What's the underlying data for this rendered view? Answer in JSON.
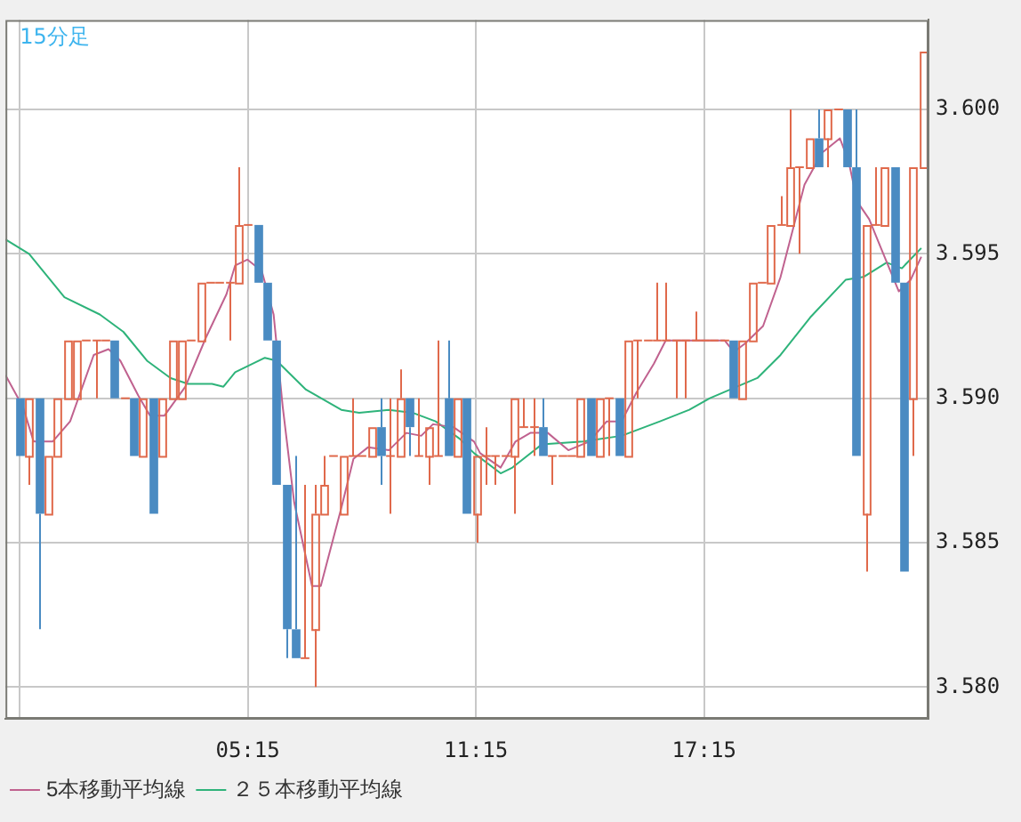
{
  "chart_data": {
    "type": "candlestick",
    "title": "15分足",
    "x": [
      -0.75,
      -0.5,
      -0.25,
      0,
      0.25,
      0.5,
      0.75,
      1,
      1.25,
      1.5,
      1.75,
      2,
      2.25,
      2.5,
      2.75,
      3,
      3.25,
      3.5,
      3.75,
      4,
      4.25,
      4.5,
      4.75,
      5,
      5.25,
      5.5,
      5.75,
      6,
      6.25,
      6.5,
      6.75,
      7,
      7.25,
      7.5,
      7.75,
      8,
      8.25,
      8.5,
      8.75,
      9,
      9.25,
      9.5,
      9.75,
      10,
      10.25,
      10.5,
      10.75,
      11,
      11.25,
      11.5,
      11.75,
      12,
      12.25,
      12.5,
      12.75,
      13,
      13.25,
      13.5,
      13.75,
      14,
      14.25,
      14.5,
      14.75,
      15,
      15.25,
      15.5,
      15.75,
      16,
      16.25,
      16.5,
      16.75,
      17,
      17.25,
      17.5,
      17.75,
      18,
      18.25,
      18.5,
      18.75,
      19,
      19.25,
      19.5,
      19.75,
      20,
      20.25,
      20.5,
      20.75,
      21,
      21.25,
      21.5,
      21.75,
      22,
      22.25,
      22.5,
      22.75,
      23
    ],
    "ohlc": [
      [
        3.59,
        3.59,
        3.588,
        3.588
      ],
      [
        3.588,
        3.59,
        3.587,
        3.59
      ],
      [
        3.59,
        3.59,
        3.582,
        3.586
      ],
      [
        3.586,
        3.588,
        3.586,
        3.588
      ],
      [
        3.588,
        3.59,
        3.588,
        3.59
      ],
      [
        3.59,
        3.592,
        3.59,
        3.592
      ],
      [
        3.59,
        3.592,
        3.59,
        3.592
      ],
      [
        3.592,
        3.592,
        3.592,
        3.592
      ],
      [
        3.592,
        3.592,
        3.59,
        3.592
      ],
      [
        3.592,
        3.592,
        3.592,
        3.592
      ],
      [
        3.592,
        3.592,
        3.59,
        3.59
      ],
      [
        3.59,
        3.59,
        3.59,
        3.59
      ],
      [
        3.59,
        3.59,
        3.588,
        3.588
      ],
      [
        3.588,
        3.59,
        3.588,
        3.59
      ],
      [
        3.59,
        3.59,
        3.586,
        3.586
      ],
      [
        3.588,
        3.59,
        3.588,
        3.59
      ],
      [
        3.59,
        3.592,
        3.59,
        3.592
      ],
      [
        3.59,
        3.592,
        3.59,
        3.592
      ],
      [
        3.592,
        3.592,
        3.592,
        3.592
      ],
      [
        3.592,
        3.594,
        3.592,
        3.594
      ],
      [
        3.594,
        3.594,
        3.594,
        3.594
      ],
      [
        3.594,
        3.594,
        3.594,
        3.594
      ],
      [
        3.594,
        3.594,
        3.592,
        3.594
      ],
      [
        3.594,
        3.598,
        3.594,
        3.596
      ],
      [
        3.596,
        3.596,
        3.596,
        3.596
      ],
      [
        3.596,
        3.596,
        3.594,
        3.594
      ],
      [
        3.594,
        3.594,
        3.592,
        3.592
      ],
      [
        3.592,
        3.592,
        3.587,
        3.587
      ],
      [
        3.587,
        3.587,
        3.581,
        3.582
      ],
      [
        3.582,
        3.588,
        3.581,
        3.581
      ],
      [
        3.581,
        3.587,
        3.581,
        3.581
      ],
      [
        3.582,
        3.587,
        3.58,
        3.586
      ],
      [
        3.586,
        3.588,
        3.586,
        3.587
      ],
      [
        3.588,
        3.588,
        3.588,
        3.588
      ],
      [
        3.586,
        3.588,
        3.586,
        3.588
      ],
      [
        3.588,
        3.59,
        3.588,
        3.588
      ],
      [
        3.588,
        3.588,
        3.588,
        3.588
      ],
      [
        3.588,
        3.589,
        3.588,
        3.589
      ],
      [
        3.589,
        3.59,
        3.587,
        3.588
      ],
      [
        3.588,
        3.59,
        3.586,
        3.588
      ],
      [
        3.588,
        3.591,
        3.588,
        3.59
      ],
      [
        3.59,
        3.59,
        3.588,
        3.589
      ],
      [
        3.588,
        3.59,
        3.588,
        3.588
      ],
      [
        3.588,
        3.589,
        3.587,
        3.589
      ],
      [
        3.588,
        3.592,
        3.588,
        3.588
      ],
      [
        3.59,
        3.592,
        3.588,
        3.588
      ],
      [
        3.588,
        3.59,
        3.588,
        3.59
      ],
      [
        3.59,
        3.59,
        3.586,
        3.586
      ],
      [
        3.586,
        3.588,
        3.585,
        3.588
      ],
      [
        3.588,
        3.589,
        3.587,
        3.588
      ],
      [
        3.588,
        3.588,
        3.587,
        3.588
      ],
      [
        3.588,
        3.588,
        3.588,
        3.588
      ],
      [
        3.588,
        3.59,
        3.586,
        3.59
      ],
      [
        3.589,
        3.59,
        3.589,
        3.589
      ],
      [
        3.589,
        3.59,
        3.588,
        3.589
      ],
      [
        3.589,
        3.59,
        3.588,
        3.588
      ],
      [
        3.588,
        3.588,
        3.587,
        3.588
      ],
      [
        3.588,
        3.588,
        3.588,
        3.588
      ],
      [
        3.588,
        3.588,
        3.588,
        3.588
      ],
      [
        3.588,
        3.59,
        3.588,
        3.59
      ],
      [
        3.59,
        3.59,
        3.588,
        3.588
      ],
      [
        3.588,
        3.59,
        3.588,
        3.59
      ],
      [
        3.59,
        3.59,
        3.588,
        3.59
      ],
      [
        3.59,
        3.59,
        3.588,
        3.588
      ],
      [
        3.588,
        3.592,
        3.588,
        3.592
      ],
      [
        3.592,
        3.592,
        3.59,
        3.592
      ],
      [
        3.592,
        3.592,
        3.592,
        3.592
      ],
      [
        3.592,
        3.594,
        3.592,
        3.592
      ],
      [
        3.592,
        3.594,
        3.592,
        3.592
      ],
      [
        3.592,
        3.592,
        3.59,
        3.592
      ],
      [
        3.592,
        3.592,
        3.59,
        3.592
      ],
      [
        3.592,
        3.593,
        3.592,
        3.592
      ],
      [
        3.592,
        3.592,
        3.592,
        3.592
      ],
      [
        3.592,
        3.592,
        3.592,
        3.592
      ],
      [
        3.592,
        3.592,
        3.592,
        3.592
      ],
      [
        3.592,
        3.592,
        3.59,
        3.59
      ],
      [
        3.59,
        3.592,
        3.59,
        3.592
      ],
      [
        3.592,
        3.594,
        3.592,
        3.594
      ],
      [
        3.594,
        3.594,
        3.594,
        3.594
      ],
      [
        3.594,
        3.596,
        3.594,
        3.596
      ],
      [
        3.596,
        3.597,
        3.596,
        3.596
      ],
      [
        3.596,
        3.6,
        3.596,
        3.598
      ],
      [
        3.598,
        3.598,
        3.595,
        3.598
      ],
      [
        3.598,
        3.599,
        3.598,
        3.599
      ],
      [
        3.599,
        3.6,
        3.598,
        3.598
      ],
      [
        3.599,
        3.6,
        3.598,
        3.6
      ],
      [
        3.6,
        3.6,
        3.6,
        3.6
      ],
      [
        3.6,
        3.6,
        3.598,
        3.598
      ],
      [
        3.598,
        3.6,
        3.588,
        3.588
      ],
      [
        3.586,
        3.596,
        3.584,
        3.596
      ],
      [
        3.596,
        3.598,
        3.596,
        3.596
      ],
      [
        3.596,
        3.598,
        3.596,
        3.598
      ],
      [
        3.598,
        3.598,
        3.594,
        3.594
      ],
      [
        3.594,
        3.594,
        3.584,
        3.584
      ],
      [
        3.59,
        3.598,
        3.588,
        3.598
      ],
      [
        3.598,
        3.602,
        3.598,
        3.602
      ]
    ],
    "colors": [
      "#4a8bc2",
      "#e0694b",
      "#4a8bc2",
      "#e0694b",
      "#e0694b",
      "#e0694b",
      "#e0694b",
      "#e0694b",
      "#e0694b",
      "#e0694b",
      "#4a8bc2",
      "#e0694b",
      "#4a8bc2",
      "#e0694b",
      "#4a8bc2",
      "#e0694b",
      "#e0694b",
      "#e0694b",
      "#e0694b",
      "#e0694b",
      "#e0694b",
      "#e0694b",
      "#e0694b",
      "#e0694b",
      "#e0694b",
      "#4a8bc2",
      "#4a8bc2",
      "#4a8bc2",
      "#4a8bc2",
      "#4a8bc2",
      "#e0694b",
      "#e0694b",
      "#e0694b",
      "#e0694b",
      "#e0694b",
      "#e0694b",
      "#e0694b",
      "#e0694b",
      "#4a8bc2",
      "#e0694b",
      "#e0694b",
      "#4a8bc2",
      "#e0694b",
      "#e0694b",
      "#e0694b",
      "#4a8bc2",
      "#e0694b",
      "#4a8bc2",
      "#e0694b",
      "#e0694b",
      "#e0694b",
      "#e0694b",
      "#e0694b",
      "#e0694b",
      "#e0694b",
      "#4a8bc2",
      "#e0694b",
      "#e0694b",
      "#e0694b",
      "#e0694b",
      "#4a8bc2",
      "#e0694b",
      "#e0694b",
      "#4a8bc2",
      "#e0694b",
      "#e0694b",
      "#e0694b",
      "#e0694b",
      "#e0694b",
      "#e0694b",
      "#e0694b",
      "#e0694b",
      "#e0694b",
      "#e0694b",
      "#e0694b",
      "#4a8bc2",
      "#e0694b",
      "#e0694b",
      "#e0694b",
      "#e0694b",
      "#e0694b",
      "#e0694b",
      "#e0694b",
      "#e0694b",
      "#4a8bc2",
      "#e0694b",
      "#e0694b",
      "#4a8bc2",
      "#4a8bc2",
      "#e0694b",
      "#e0694b",
      "#e0694b",
      "#4a8bc2",
      "#4a8bc2",
      "#e0694b",
      "#e0694b"
    ],
    "series": [
      {
        "name": "5本移動平均線",
        "type": "line",
        "color": "#c0628f",
        "x": [
          -1.12,
          -0.66,
          -0.38,
          0.12,
          0.58,
          1.2,
          1.59,
          1.9,
          2.37,
          2.68,
          3.06,
          3.61,
          4.15,
          4.69,
          4.92,
          5.24,
          5.62,
          5.93,
          6.17,
          6.47,
          6.94,
          7.17,
          7.71,
          8.03,
          8.41,
          8.96,
          9.42,
          9.81,
          10.12,
          10.66,
          11.2,
          11.36,
          11.9,
          12.29,
          12.68,
          13.14,
          13.68,
          14.23,
          14.69,
          15.08,
          15.47,
          15.93,
          16.24,
          17.48,
          17.79,
          18.03,
          18.33,
          18.8,
          19.26,
          19.89,
          20.35,
          20.82,
          21.05,
          21.28,
          21.59,
          21.9,
          22.37,
          22.68,
          22.96
        ],
        "values": [
          3.5908,
          3.5897,
          3.5885,
          3.5885,
          3.5892,
          3.5915,
          3.5917,
          3.5913,
          3.5901,
          3.5894,
          3.5894,
          3.5904,
          3.5921,
          3.5936,
          3.5946,
          3.5948,
          3.5944,
          3.5929,
          3.5897,
          3.5864,
          3.5835,
          3.5835,
          3.5862,
          3.5879,
          3.5883,
          3.5882,
          3.5888,
          3.5887,
          3.5891,
          3.589,
          3.5885,
          3.5881,
          3.5876,
          3.5885,
          3.5888,
          3.5888,
          3.5882,
          3.5885,
          3.5892,
          3.5892,
          3.5902,
          3.5912,
          3.592,
          3.592,
          3.592,
          3.5916,
          3.5919,
          3.5925,
          3.5942,
          3.5974,
          3.5985,
          3.599,
          3.5982,
          3.5968,
          3.5962,
          3.5952,
          3.5937,
          3.5941,
          3.5949
        ]
      },
      {
        "name": "２５本移動平均線",
        "type": "line",
        "color": "#2eb37a",
        "x": [
          -1.12,
          -0.5,
          0.43,
          1.36,
          1.98,
          2.6,
          3.22,
          3.68,
          4.31,
          4.61,
          4.92,
          5.7,
          6.01,
          6.78,
          7.71,
          8.18,
          8.96,
          9.58,
          10.19,
          10.82,
          11.2,
          11.9,
          12.21,
          12.98,
          14.07,
          15.08,
          16.09,
          16.86,
          17.4,
          18.65,
          19.26,
          20.04,
          20.97,
          21.44,
          22.05,
          22.45,
          22.96
        ],
        "values": [
          3.5955,
          3.595,
          3.5935,
          3.5929,
          3.5923,
          3.5913,
          3.5907,
          3.5905,
          3.5905,
          3.5904,
          3.5909,
          3.5914,
          3.5913,
          3.5903,
          3.5896,
          3.5895,
          3.5896,
          3.5895,
          3.5892,
          3.5886,
          3.5881,
          3.5874,
          3.5876,
          3.5884,
          3.5885,
          3.5887,
          3.5892,
          3.5896,
          3.59,
          3.5907,
          3.5915,
          3.5928,
          3.5941,
          3.5942,
          3.5947,
          3.5945,
          3.5952
        ]
      }
    ],
    "xlim": [
      -1.12,
      23.15
    ],
    "xticks": [
      {
        "value": -0.75,
        "label": null
      },
      {
        "value": 5.25,
        "label": "05:15"
      },
      {
        "value": 11.25,
        "label": "11:15"
      },
      {
        "value": 17.25,
        "label": "17:15"
      }
    ],
    "ylim": [
      3.5789,
      3.6031
    ],
    "yticks": [
      {
        "value": 3.58,
        "label": "3.580"
      },
      {
        "value": 3.585,
        "label": "3.585"
      },
      {
        "value": 3.59,
        "label": "3.590"
      },
      {
        "value": 3.595,
        "label": "3.595"
      },
      {
        "value": 3.6,
        "label": "3.600"
      }
    ],
    "grid": true,
    "legend": "bottom left",
    "marker": "none"
  }
}
